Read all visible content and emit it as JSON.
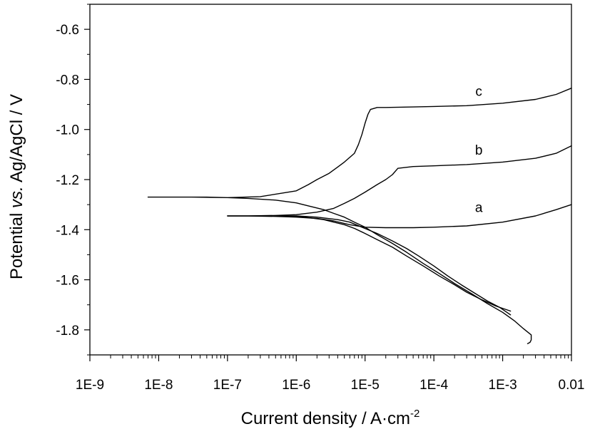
{
  "chart_data": {
    "type": "line",
    "title": "",
    "ylabel": {
      "pre": "Potential ",
      "italic": "vs.",
      "post": " Ag/AgCl / V"
    },
    "xlabel": {
      "text": "Current density / A·cm",
      "superscript": "-2"
    },
    "x_scale": "log",
    "xlim": [
      1e-09,
      0.01
    ],
    "ylim": [
      -1.9,
      -0.5
    ],
    "x_ticks": [
      1e-09,
      1e-08,
      1e-07,
      1e-06,
      1e-05,
      0.0001,
      0.001,
      0.01
    ],
    "x_tick_labels": [
      "1E-9",
      "1E-8",
      "1E-7",
      "1E-6",
      "1E-5",
      "1E-4",
      "1E-3",
      "0.01"
    ],
    "y_ticks": [
      -0.6,
      -0.8,
      -1.0,
      -1.2,
      -1.4,
      -1.6,
      -1.8
    ],
    "y_tick_labels": [
      "-0.6",
      "-0.8",
      "-1.0",
      "-1.2",
      "-1.4",
      "-1.6",
      "-1.8"
    ],
    "grid": false,
    "series": [
      {
        "label": "a",
        "label_at": [
          0.00045,
          -1.33
        ],
        "x": [
          0.0013,
          0.0009,
          0.0006,
          0.0004,
          0.00025,
          0.00016,
          0.0001,
          6e-05,
          4e-05,
          2.5e-05,
          1.5e-05,
          9e-06,
          6e-06,
          4e-06,
          2e-06,
          1e-06,
          5e-07,
          3e-07,
          2e-07,
          1e-07,
          2e-07,
          5e-07,
          1e-06,
          2e-06,
          3.5e-06,
          6e-06,
          1e-05,
          2e-05,
          5e-05,
          0.0001,
          0.0003,
          0.001,
          0.003,
          0.006,
          0.01
        ],
        "y": [
          -1.74,
          -1.71,
          -1.685,
          -1.655,
          -1.62,
          -1.585,
          -1.545,
          -1.505,
          -1.475,
          -1.445,
          -1.415,
          -1.39,
          -1.37,
          -1.36,
          -1.35,
          -1.345,
          -1.345,
          -1.345,
          -1.345,
          -1.345,
          -1.345,
          -1.347,
          -1.35,
          -1.355,
          -1.365,
          -1.38,
          -1.39,
          -1.392,
          -1.392,
          -1.39,
          -1.385,
          -1.37,
          -1.345,
          -1.32,
          -1.3
        ]
      },
      {
        "label": "b",
        "label_at": [
          0.00045,
          -1.1
        ],
        "x": [
          0.0013,
          0.0008,
          0.0005,
          0.0003,
          0.0002,
          0.00012,
          7e-05,
          4e-05,
          2.5e-05,
          1.5e-05,
          1e-05,
          7e-06,
          5e-06,
          3.5e-06,
          2.5e-06,
          1.5e-06,
          1e-06,
          5e-07,
          2e-07,
          1e-07,
          2e-07,
          5e-07,
          1e-06,
          2e-06,
          3.5e-06,
          5e-06,
          7e-06,
          1e-05,
          1.5e-05,
          2e-05,
          2.5e-05,
          3e-05,
          5e-05,
          0.0001,
          0.0003,
          0.001,
          0.003,
          0.006,
          0.01
        ],
        "y": [
          -1.725,
          -1.705,
          -1.68,
          -1.65,
          -1.62,
          -1.585,
          -1.545,
          -1.505,
          -1.47,
          -1.44,
          -1.415,
          -1.395,
          -1.38,
          -1.37,
          -1.36,
          -1.352,
          -1.348,
          -1.345,
          -1.345,
          -1.345,
          -1.345,
          -1.343,
          -1.34,
          -1.33,
          -1.315,
          -1.295,
          -1.275,
          -1.25,
          -1.22,
          -1.2,
          -1.18,
          -1.155,
          -1.148,
          -1.145,
          -1.14,
          -1.13,
          -1.115,
          -1.095,
          -1.065
        ]
      },
      {
        "label": "c",
        "label_at": [
          0.00045,
          -0.865
        ],
        "x": [
          0.0023,
          0.0025,
          0.0026,
          0.0026,
          0.002,
          0.0015,
          0.001,
          0.0006,
          0.00035,
          0.0002,
          0.00012,
          7e-05,
          4e-05,
          2.5e-05,
          1.5e-05,
          1e-05,
          7e-06,
          5e-06,
          3.5e-06,
          2.5e-06,
          1.5e-06,
          1e-06,
          5e-07,
          2e-07,
          1e-07,
          5e-08,
          2e-08,
          7e-09,
          1e-08,
          3e-08,
          1e-07,
          3e-07,
          1e-06,
          1.5e-06,
          2e-06,
          3e-06,
          4e-06,
          5e-06,
          7e-06,
          8e-06,
          9e-06,
          1e-05,
          1.1e-05,
          1.2e-05,
          1.5e-05,
          2e-05,
          5e-05,
          0.0001,
          0.0003,
          0.001,
          0.003,
          0.006,
          0.01
        ],
        "y": [
          -1.855,
          -1.85,
          -1.84,
          -1.82,
          -1.795,
          -1.765,
          -1.73,
          -1.695,
          -1.655,
          -1.615,
          -1.575,
          -1.535,
          -1.49,
          -1.455,
          -1.42,
          -1.39,
          -1.37,
          -1.35,
          -1.335,
          -1.32,
          -1.305,
          -1.293,
          -1.282,
          -1.275,
          -1.272,
          -1.27,
          -1.27,
          -1.27,
          -1.27,
          -1.27,
          -1.272,
          -1.268,
          -1.245,
          -1.22,
          -1.2,
          -1.175,
          -1.15,
          -1.13,
          -1.095,
          -1.06,
          -1.02,
          -0.975,
          -0.94,
          -0.92,
          -0.912,
          -0.912,
          -0.91,
          -0.908,
          -0.905,
          -0.895,
          -0.88,
          -0.86,
          -0.835
        ]
      }
    ]
  }
}
